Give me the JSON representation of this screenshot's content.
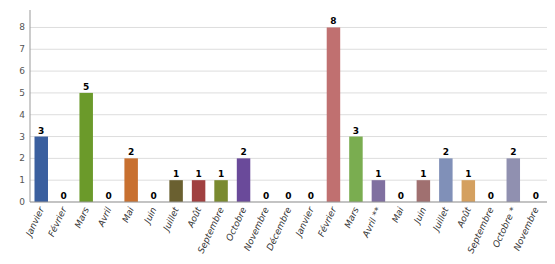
{
  "chart_data": {
    "type": "bar",
    "categories": [
      "Janvier",
      "Février",
      "Mars",
      "Avril",
      "Mai",
      "Juin",
      "Juillet",
      "Août",
      "Septembre",
      "Octobre",
      "Novembre",
      "Décembre",
      "Janvier",
      "Février",
      "Mars",
      "Avril **",
      "Mai",
      "Juin",
      "Juillet",
      "Août",
      "Septembre",
      "Octobre *",
      "Novembre"
    ],
    "values": [
      3,
      0,
      5,
      0,
      2,
      0,
      1,
      1,
      1,
      2,
      0,
      0,
      0,
      8,
      3,
      1,
      0,
      1,
      2,
      1,
      0,
      2,
      0
    ],
    "colors": [
      "#3A5F9F",
      "#A83030",
      "#6B9A2A",
      "#7B4A9A",
      "#C87030",
      "#4A90A0",
      "#6A6030",
      "#A04040",
      "#7A8A30",
      "#6A4A9A",
      "#C0A030",
      "#C07030",
      "#4472C4",
      "#C07070",
      "#7AAD50",
      "#8070A0",
      "#C09090",
      "#A07070",
      "#8090B8",
      "#D4A060",
      "#B0A0B8",
      "#9090B0",
      "#B0B0C8"
    ],
    "ylim": [
      0,
      8.8
    ],
    "yticks": [
      0,
      1,
      2,
      3,
      4,
      5,
      6,
      7,
      8
    ],
    "grid": true,
    "data_labels": true
  }
}
